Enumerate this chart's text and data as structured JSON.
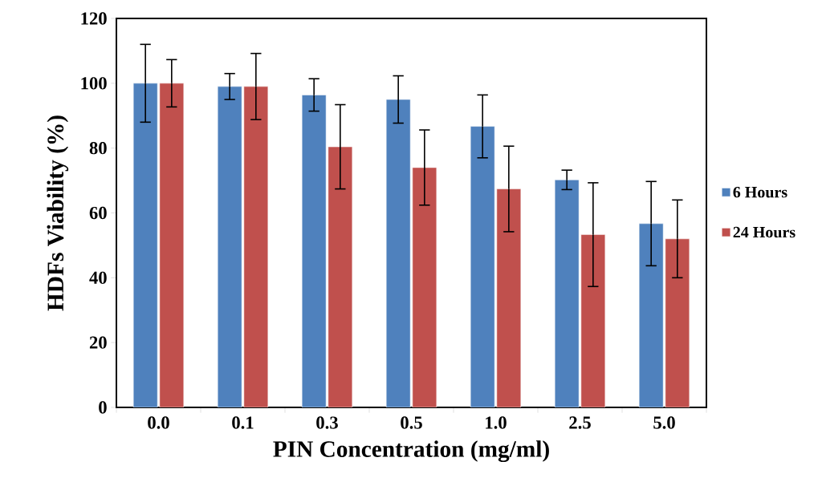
{
  "chart_data": {
    "type": "bar",
    "xlabel": "PIN Concentration (mg/ml)",
    "ylabel": "HDFs Viability (%)",
    "categories": [
      "0.0",
      "0.1",
      "0.3",
      "0.5",
      "1.0",
      "2.5",
      "5.0"
    ],
    "series": [
      {
        "name": "6 Hours",
        "color": "#4f81bd",
        "values": [
          100,
          99,
          96.4,
          95,
          86.7,
          70.2,
          56.7
        ],
        "errors": [
          12,
          4,
          5,
          7.3,
          9.7,
          3,
          13
        ]
      },
      {
        "name": "24 Hours",
        "color": "#c0504d",
        "values": [
          100,
          99,
          80.4,
          74,
          67.4,
          53.3,
          52
        ],
        "errors": [
          7.3,
          10.2,
          13,
          11.6,
          13.2,
          16,
          12
        ]
      }
    ],
    "ylim": [
      0,
      120
    ],
    "yticks": [
      0,
      20,
      40,
      60,
      80,
      100,
      120
    ],
    "legend": "right"
  }
}
